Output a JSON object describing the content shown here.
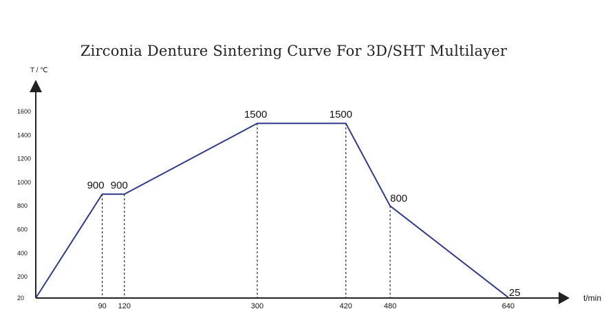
{
  "chart_data": {
    "type": "line",
    "title": "Zirconia Denture Sintering Curve For 3D/SHT Multilayer",
    "xlabel": "t/min",
    "ylabel": "T / ℃",
    "y_ticks": [
      20,
      200,
      400,
      600,
      800,
      1000,
      1200,
      1400,
      1600
    ],
    "x_ticks": [
      90,
      120,
      300,
      420,
      480,
      640
    ],
    "grid": false,
    "series": [
      {
        "color": "#2e3a8c",
        "points": [
          {
            "x": 0,
            "y": 20
          },
          {
            "x": 90,
            "y": 900
          },
          {
            "x": 120,
            "y": 900
          },
          {
            "x": 300,
            "y": 1500
          },
          {
            "x": 420,
            "y": 1500
          },
          {
            "x": 480,
            "y": 800
          },
          {
            "x": 640,
            "y": 25
          }
        ]
      }
    ],
    "point_labels": [
      {
        "x": 90,
        "y": 900,
        "text": "900"
      },
      {
        "x": 120,
        "y": 900,
        "text": "900"
      },
      {
        "x": 300,
        "y": 1500,
        "text": "1500"
      },
      {
        "x": 420,
        "y": 1500,
        "text": "1500"
      },
      {
        "x": 480,
        "y": 800,
        "text": "800"
      },
      {
        "x": 640,
        "y": 25,
        "text": "25"
      }
    ],
    "drop_lines_at_x": [
      90,
      120,
      300,
      420,
      480,
      640
    ]
  }
}
